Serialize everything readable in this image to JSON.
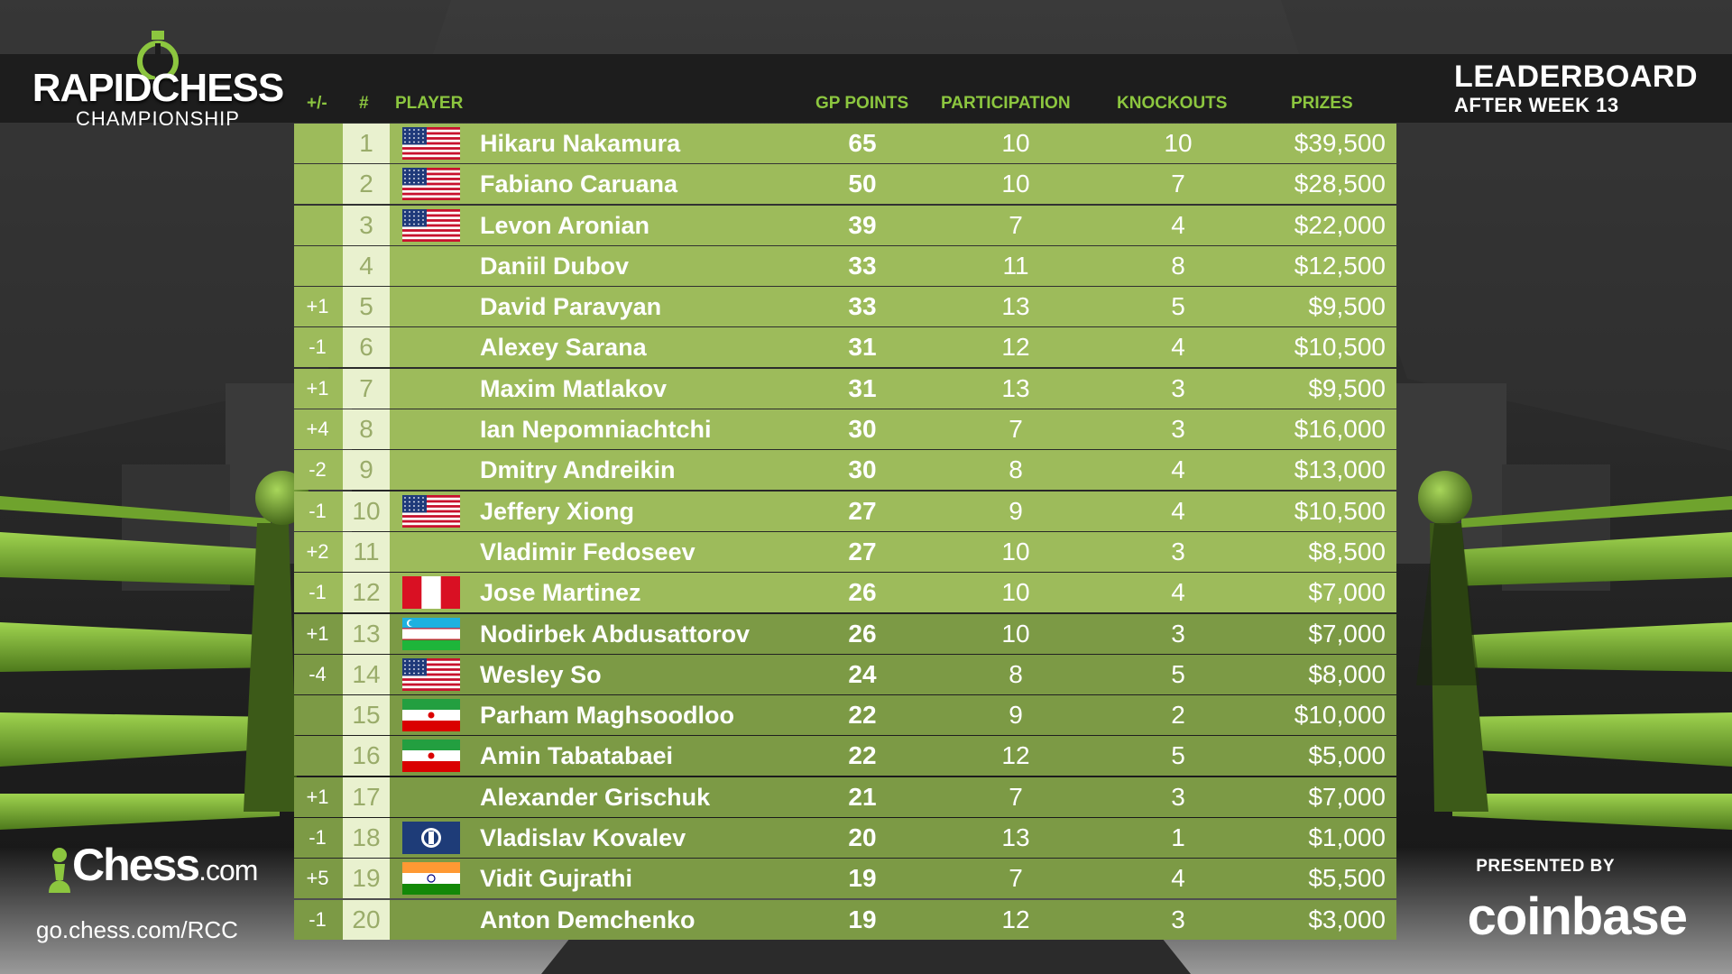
{
  "logo": {
    "title": "RAPIDCHESS",
    "subtitle": "CHAMPIONSHIP"
  },
  "leaderboard": {
    "title": "LEADERBOARD",
    "subtitle": "AFTER WEEK 13"
  },
  "columns": {
    "change": "+/-",
    "rank": "#",
    "player": "PLAYER",
    "points": "GP POINTS",
    "participation": "PARTICIPATION",
    "knockouts": "KNOCKOUTS",
    "prizes": "PRIZES"
  },
  "colors": {
    "row_light": "#9dbb5b",
    "row_dark": "#7c9a45",
    "rank_cell": "#e9f1cf",
    "header_green": "#8cc63f",
    "accent_green": "#86c441"
  },
  "rows": [
    {
      "change": "",
      "rank": "1",
      "flag": "us",
      "name": "Hikaru Nakamura",
      "points": "65",
      "participation": "10",
      "knockouts": "10",
      "prize": "$39,500"
    },
    {
      "change": "",
      "rank": "2",
      "flag": "us",
      "name": "Fabiano Caruana",
      "points": "50",
      "participation": "10",
      "knockouts": "7",
      "prize": "$28,500"
    },
    {
      "change": "",
      "rank": "3",
      "flag": "us",
      "name": "Levon Aronian",
      "points": "39",
      "participation": "7",
      "knockouts": "4",
      "prize": "$22,000"
    },
    {
      "change": "",
      "rank": "4",
      "flag": "",
      "name": "Daniil Dubov",
      "points": "33",
      "participation": "11",
      "knockouts": "8",
      "prize": "$12,500"
    },
    {
      "change": "+1",
      "rank": "5",
      "flag": "",
      "name": "David Paravyan",
      "points": "33",
      "participation": "13",
      "knockouts": "5",
      "prize": "$9,500"
    },
    {
      "change": "-1",
      "rank": "6",
      "flag": "",
      "name": "Alexey Sarana",
      "points": "31",
      "participation": "12",
      "knockouts": "4",
      "prize": "$10,500"
    },
    {
      "change": "+1",
      "rank": "7",
      "flag": "",
      "name": "Maxim Matlakov",
      "points": "31",
      "participation": "13",
      "knockouts": "3",
      "prize": "$9,500"
    },
    {
      "change": "+4",
      "rank": "8",
      "flag": "",
      "name": "Ian Nepomniachtchi",
      "points": "30",
      "participation": "7",
      "knockouts": "3",
      "prize": "$16,000"
    },
    {
      "change": "-2",
      "rank": "9",
      "flag": "",
      "name": "Dmitry Andreikin",
      "points": "30",
      "participation": "8",
      "knockouts": "4",
      "prize": "$13,000"
    },
    {
      "change": "-1",
      "rank": "10",
      "flag": "us",
      "name": "Jeffery Xiong",
      "points": "27",
      "participation": "9",
      "knockouts": "4",
      "prize": "$10,500"
    },
    {
      "change": "+2",
      "rank": "11",
      "flag": "",
      "name": "Vladimir Fedoseev",
      "points": "27",
      "participation": "10",
      "knockouts": "3",
      "prize": "$8,500"
    },
    {
      "change": "-1",
      "rank": "12",
      "flag": "pe",
      "name": "Jose Martinez",
      "points": "26",
      "participation": "10",
      "knockouts": "4",
      "prize": "$7,000"
    },
    {
      "change": "+1",
      "rank": "13",
      "flag": "uz",
      "name": "Nodirbek Abdusattorov",
      "points": "26",
      "participation": "10",
      "knockouts": "3",
      "prize": "$7,000"
    },
    {
      "change": "-4",
      "rank": "14",
      "flag": "us",
      "name": "Wesley So",
      "points": "24",
      "participation": "8",
      "knockouts": "5",
      "prize": "$8,000"
    },
    {
      "change": "",
      "rank": "15",
      "flag": "ir",
      "name": "Parham Maghsoodloo",
      "points": "22",
      "participation": "9",
      "knockouts": "2",
      "prize": "$10,000"
    },
    {
      "change": "",
      "rank": "16",
      "flag": "ir",
      "name": "Amin Tabatabaei",
      "points": "22",
      "participation": "12",
      "knockouts": "5",
      "prize": "$5,000"
    },
    {
      "change": "+1",
      "rank": "17",
      "flag": "",
      "name": "Alexander Grischuk",
      "points": "21",
      "participation": "7",
      "knockouts": "3",
      "prize": "$7,000"
    },
    {
      "change": "-1",
      "rank": "18",
      "flag": "fide",
      "name": "Vladislav Kovalev",
      "points": "20",
      "participation": "13",
      "knockouts": "1",
      "prize": "$1,000"
    },
    {
      "change": "+5",
      "rank": "19",
      "flag": "in",
      "name": "Vidit Gujrathi",
      "points": "19",
      "participation": "7",
      "knockouts": "4",
      "prize": "$5,500"
    },
    {
      "change": "-1",
      "rank": "20",
      "flag": "",
      "name": "Anton Demchenko",
      "points": "19",
      "participation": "12",
      "knockouts": "3",
      "prize": "$3,000"
    }
  ],
  "footer": {
    "brand": "Chess",
    "brand_suffix": ".com",
    "url": "go.chess.com/RCC",
    "presented_by": "PRESENTED BY",
    "sponsor": "coinbase"
  }
}
